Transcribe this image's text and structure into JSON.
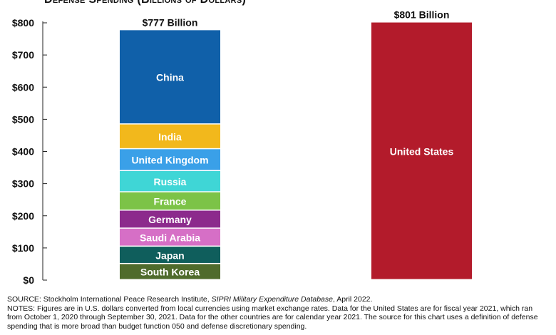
{
  "chart_data": {
    "type": "bar",
    "subtype": "stacked",
    "title": "Defense Spending (Billions of Dollars)",
    "ylim": [
      0,
      800
    ],
    "yticks": [
      0,
      100,
      200,
      300,
      400,
      500,
      600,
      700,
      800
    ],
    "ytick_labels": [
      "$0",
      "$100",
      "$200",
      "$300",
      "$400",
      "$500",
      "$600",
      "$700",
      "$800"
    ],
    "grid": false,
    "bars": [
      {
        "total_label": "$777 Billion",
        "total": 777,
        "segments": [
          {
            "label": "South Korea",
            "value": 50,
            "color": "#4f6b2c"
          },
          {
            "label": "Japan",
            "value": 54,
            "color": "#0f5e5c"
          },
          {
            "label": "Saudi Arabia",
            "value": 56,
            "color": "#d66fc6"
          },
          {
            "label": "Germany",
            "value": 56,
            "color": "#8c2a8c"
          },
          {
            "label": "France",
            "value": 57,
            "color": "#7cc347"
          },
          {
            "label": "Russia",
            "value": 66,
            "color": "#3fd6d6"
          },
          {
            "label": "United Kingdom",
            "value": 68,
            "color": "#3aa0e8"
          },
          {
            "label": "India",
            "value": 77,
            "color": "#f2b81c"
          },
          {
            "label": "China",
            "value": 293,
            "color": "#1060a9"
          }
        ]
      },
      {
        "total_label": "$801 Billion",
        "total": 801,
        "segments": [
          {
            "label": "United States",
            "value": 801,
            "color": "#b31b2b"
          }
        ]
      }
    ]
  },
  "footnotes": {
    "source_prefix": "SOURCE: Stockholm International Peace Research Institute, ",
    "source_italic": "SIPRI Military Expenditure Database",
    "source_suffix": ", April 2022.",
    "notes": "NOTES: Figures are in U.S. dollars converted from local currencies using market exchange rates. Data for the United States are for fiscal year 2021, which ran from October 1, 2020 through September 30, 2021. Data for the other countries are for calendar year 2021. The source for this chart uses a definition of defense spending that is more broad than budget function 050 and defense discretionary spending."
  }
}
